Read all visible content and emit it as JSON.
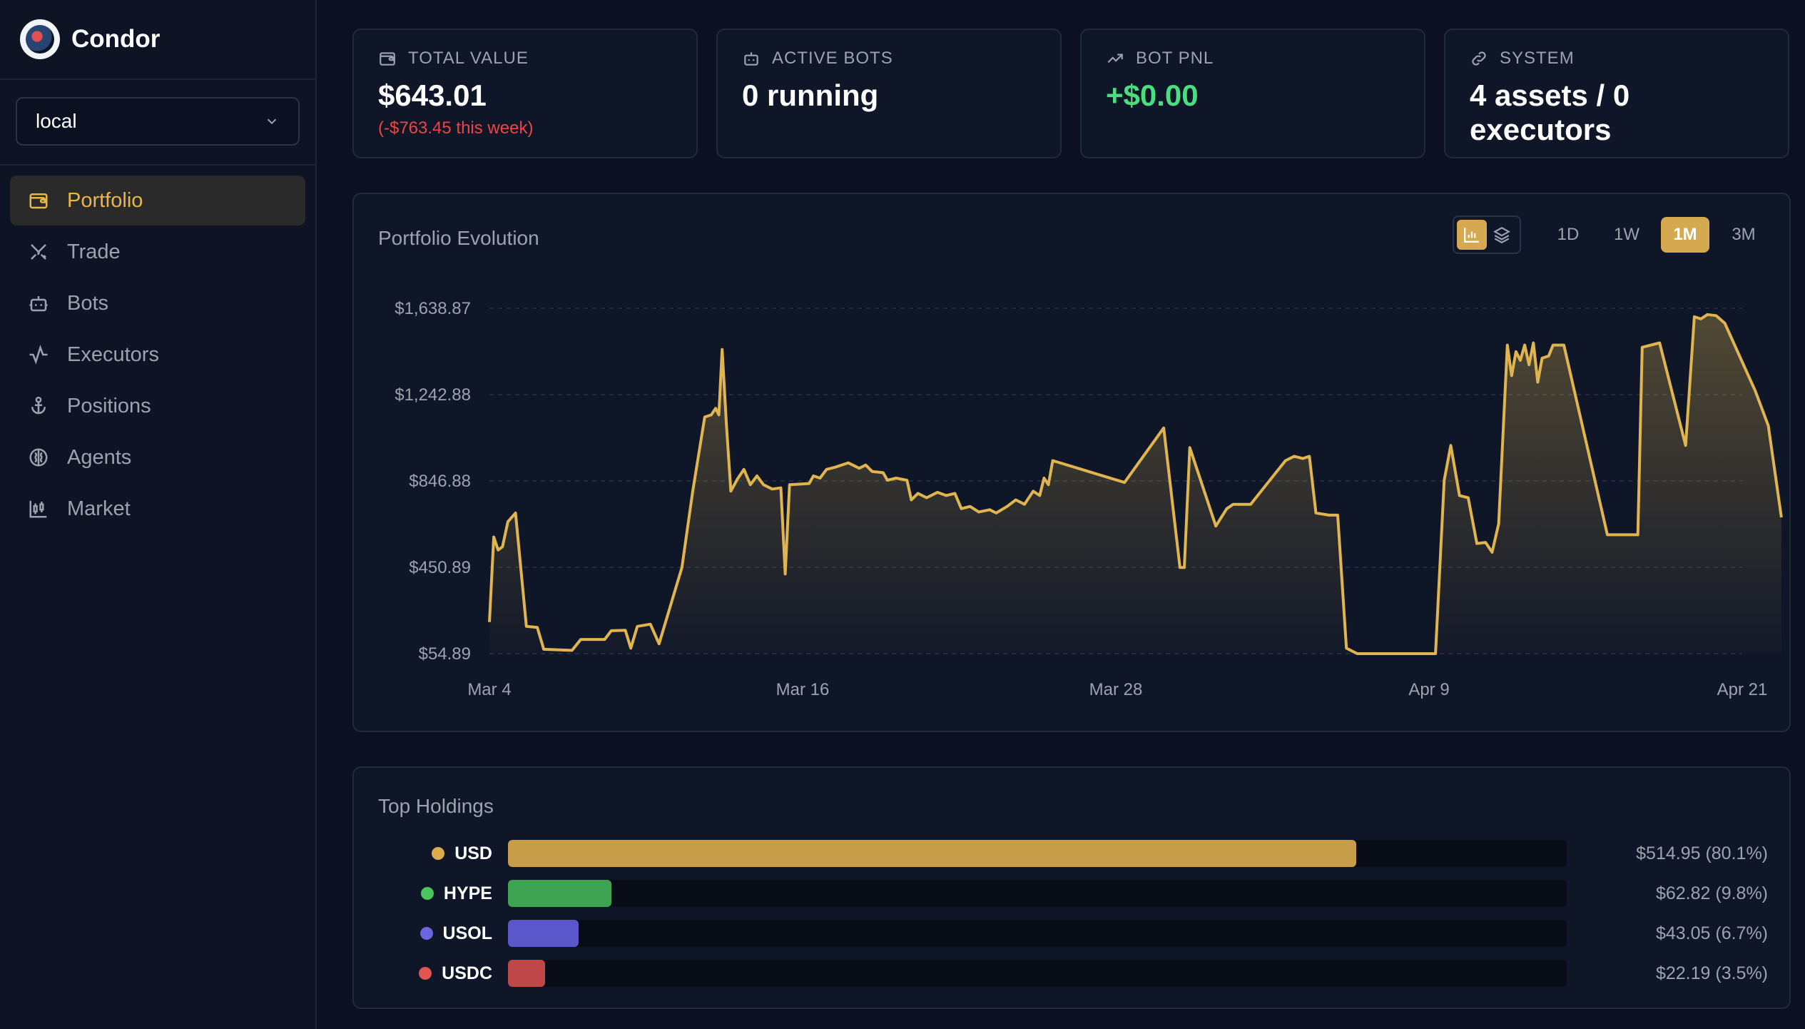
{
  "app": {
    "name": "Condor",
    "environment": "local"
  },
  "nav": [
    {
      "label": "Portfolio",
      "icon": "wallet-icon",
      "active": true
    },
    {
      "label": "Trade",
      "icon": "swords-icon",
      "active": false
    },
    {
      "label": "Bots",
      "icon": "bot-icon",
      "active": false
    },
    {
      "label": "Executors",
      "icon": "activity-icon",
      "active": false
    },
    {
      "label": "Positions",
      "icon": "anchor-icon",
      "active": false
    },
    {
      "label": "Agents",
      "icon": "brain-icon",
      "active": false
    },
    {
      "label": "Market",
      "icon": "candlestick-icon",
      "active": false
    }
  ],
  "cards": {
    "total_value": {
      "label": "TOTAL VALUE",
      "value": "$643.01",
      "sub": "(-$763.45 this week)"
    },
    "active_bots": {
      "label": "ACTIVE BOTS",
      "value": "0 running"
    },
    "bot_pnl": {
      "label": "BOT PNL",
      "value": "+$0.00"
    },
    "system": {
      "label": "SYSTEM",
      "value": "4 assets / 0 executors"
    }
  },
  "evolution": {
    "title": "Portfolio Evolution",
    "ranges": [
      "1D",
      "1W",
      "1M",
      "3M"
    ],
    "selected_range": "1M",
    "view_modes": [
      "bar-chart-icon",
      "layers-icon"
    ]
  },
  "chart_data": {
    "type": "area",
    "title": "",
    "xlabel": "",
    "ylabel": "",
    "ylim": [
      54.89,
      1638.87
    ],
    "y_ticks": [
      "$1,638.87",
      "$1,242.88",
      "$846.88",
      "$450.89",
      "$54.89"
    ],
    "y_tick_values": [
      1638.87,
      1242.88,
      846.88,
      450.89,
      54.89
    ],
    "x_ticks": [
      "Mar 4",
      "Mar 16",
      "Mar 28",
      "Apr 9",
      "Apr 21"
    ],
    "x_tick_values": [
      "2025-03-04",
      "2025-03-16",
      "2025-03-28",
      "2025-04-09",
      "2025-04-21"
    ],
    "grid": true,
    "line_color": "#e0b54f",
    "series": [
      {
        "values": [
          {
            "x": "2025-03-04T00:00",
            "y": 200
          },
          {
            "x": "2025-03-04T04:00",
            "y": 590
          },
          {
            "x": "2025-03-04T08:00",
            "y": 530
          },
          {
            "x": "2025-03-04T12:00",
            "y": 545
          },
          {
            "x": "2025-03-04T17:00",
            "y": 660
          },
          {
            "x": "2025-03-05T00:00",
            "y": 700
          },
          {
            "x": "2025-03-05T10:00",
            "y": 180
          },
          {
            "x": "2025-03-05T20:00",
            "y": 175
          },
          {
            "x": "2025-03-06T02:00",
            "y": 75
          },
          {
            "x": "2025-03-07T04:00",
            "y": 70
          },
          {
            "x": "2025-03-07T12:00",
            "y": 120
          },
          {
            "x": "2025-03-08T10:00",
            "y": 120
          },
          {
            "x": "2025-03-08T16:00",
            "y": 160
          },
          {
            "x": "2025-03-09T05:00",
            "y": 162
          },
          {
            "x": "2025-03-09T10:00",
            "y": 80
          },
          {
            "x": "2025-03-09T16:00",
            "y": 180
          },
          {
            "x": "2025-03-10T04:00",
            "y": 190
          },
          {
            "x": "2025-03-10T12:00",
            "y": 100
          },
          {
            "x": "2025-03-11T09:00",
            "y": 450
          },
          {
            "x": "2025-03-11T19:00",
            "y": 800
          },
          {
            "x": "2025-03-12T06:00",
            "y": 1140
          },
          {
            "x": "2025-03-12T12:00",
            "y": 1150
          },
          {
            "x": "2025-03-12T16:00",
            "y": 1180
          },
          {
            "x": "2025-03-12T19:00",
            "y": 1150
          },
          {
            "x": "2025-03-12T22:00",
            "y": 1450
          },
          {
            "x": "2025-03-13T02:00",
            "y": 1100
          },
          {
            "x": "2025-03-13T06:00",
            "y": 800
          },
          {
            "x": "2025-03-13T12:00",
            "y": 855
          },
          {
            "x": "2025-03-13T18:00",
            "y": 900
          },
          {
            "x": "2025-03-14T00:00",
            "y": 830
          },
          {
            "x": "2025-03-14T06:00",
            "y": 870
          },
          {
            "x": "2025-03-14T12:00",
            "y": 830
          },
          {
            "x": "2025-03-14T20:00",
            "y": 810
          },
          {
            "x": "2025-03-15T04:00",
            "y": 815
          },
          {
            "x": "2025-03-15T08:00",
            "y": 420
          },
          {
            "x": "2025-03-15T12:00",
            "y": 830
          },
          {
            "x": "2025-03-16T06:00",
            "y": 835
          },
          {
            "x": "2025-03-16T10:00",
            "y": 870
          },
          {
            "x": "2025-03-16T16:00",
            "y": 860
          },
          {
            "x": "2025-03-16T22:00",
            "y": 900
          },
          {
            "x": "2025-03-17T06:00",
            "y": 910
          },
          {
            "x": "2025-03-17T18:00",
            "y": 930
          },
          {
            "x": "2025-03-18T04:00",
            "y": 905
          },
          {
            "x": "2025-03-18T10:00",
            "y": 920
          },
          {
            "x": "2025-03-18T16:00",
            "y": 890
          },
          {
            "x": "2025-03-19T02:00",
            "y": 885
          },
          {
            "x": "2025-03-19T06:00",
            "y": 850
          },
          {
            "x": "2025-03-19T14:00",
            "y": 860
          },
          {
            "x": "2025-03-20T00:00",
            "y": 850
          },
          {
            "x": "2025-03-20T04:00",
            "y": 760
          },
          {
            "x": "2025-03-20T10:00",
            "y": 790
          },
          {
            "x": "2025-03-20T18:00",
            "y": 770
          },
          {
            "x": "2025-03-21T04:00",
            "y": 795
          },
          {
            "x": "2025-03-21T12:00",
            "y": 780
          },
          {
            "x": "2025-03-21T20:00",
            "y": 790
          },
          {
            "x": "2025-03-22T02:00",
            "y": 720
          },
          {
            "x": "2025-03-22T10:00",
            "y": 730
          },
          {
            "x": "2025-03-22T18:00",
            "y": 705
          },
          {
            "x": "2025-03-23T04:00",
            "y": 715
          },
          {
            "x": "2025-03-23T10:00",
            "y": 700
          },
          {
            "x": "2025-03-23T20:00",
            "y": 730
          },
          {
            "x": "2025-03-24T04:00",
            "y": 760
          },
          {
            "x": "2025-03-24T12:00",
            "y": 740
          },
          {
            "x": "2025-03-24T20:00",
            "y": 800
          },
          {
            "x": "2025-03-25T02:00",
            "y": 780
          },
          {
            "x": "2025-03-25T06:00",
            "y": 860
          },
          {
            "x": "2025-03-25T10:00",
            "y": 830
          },
          {
            "x": "2025-03-25T14:00",
            "y": 940
          },
          {
            "x": "2025-03-28T08:00",
            "y": 840
          },
          {
            "x": "2025-03-29T20:00",
            "y": 1090
          },
          {
            "x": "2025-03-30T11:00",
            "y": 450
          },
          {
            "x": "2025-03-30T15:00",
            "y": 450
          },
          {
            "x": "2025-03-30T20:00",
            "y": 1000
          },
          {
            "x": "2025-03-31T20:00",
            "y": 640
          },
          {
            "x": "2025-04-01T06:00",
            "y": 720
          },
          {
            "x": "2025-04-01T12:00",
            "y": 740
          },
          {
            "x": "2025-04-02T04:00",
            "y": 740
          },
          {
            "x": "2025-04-03T12:00",
            "y": 940
          },
          {
            "x": "2025-04-03T20:00",
            "y": 960
          },
          {
            "x": "2025-04-04T04:00",
            "y": 950
          },
          {
            "x": "2025-04-04T10:00",
            "y": 960
          },
          {
            "x": "2025-04-04T16:00",
            "y": 700
          },
          {
            "x": "2025-04-05T04:00",
            "y": 690
          },
          {
            "x": "2025-04-05T12:00",
            "y": 690
          },
          {
            "x": "2025-04-05T20:00",
            "y": 80
          },
          {
            "x": "2025-04-06T06:00",
            "y": 55
          },
          {
            "x": "2025-04-09T06:00",
            "y": 55
          },
          {
            "x": "2025-04-09T14:00",
            "y": 850
          },
          {
            "x": "2025-04-09T20:00",
            "y": 1010
          },
          {
            "x": "2025-04-10T04:00",
            "y": 780
          },
          {
            "x": "2025-04-10T12:00",
            "y": 770
          },
          {
            "x": "2025-04-10T20:00",
            "y": 560
          },
          {
            "x": "2025-04-11T04:00",
            "y": 565
          },
          {
            "x": "2025-04-11T10:00",
            "y": 520
          },
          {
            "x": "2025-04-11T16:00",
            "y": 650
          },
          {
            "x": "2025-04-12T00:00",
            "y": 1470
          },
          {
            "x": "2025-04-12T04:00",
            "y": 1330
          },
          {
            "x": "2025-04-12T08:00",
            "y": 1440
          },
          {
            "x": "2025-04-12T12:00",
            "y": 1400
          },
          {
            "x": "2025-04-12T16:00",
            "y": 1470
          },
          {
            "x": "2025-04-12T20:00",
            "y": 1380
          },
          {
            "x": "2025-04-13T00:00",
            "y": 1480
          },
          {
            "x": "2025-04-13T04:00",
            "y": 1300
          },
          {
            "x": "2025-04-13T08:00",
            "y": 1410
          },
          {
            "x": "2025-04-13T14:00",
            "y": 1420
          },
          {
            "x": "2025-04-13T18:00",
            "y": 1470
          },
          {
            "x": "2025-04-14T04:00",
            "y": 1470
          },
          {
            "x": "2025-04-15T20:00",
            "y": 600
          },
          {
            "x": "2025-04-17T00:00",
            "y": 600
          },
          {
            "x": "2025-04-17T04:00",
            "y": 1460
          },
          {
            "x": "2025-04-17T20:00",
            "y": 1480
          },
          {
            "x": "2025-04-18T20:00",
            "y": 1010
          },
          {
            "x": "2025-04-19T04:00",
            "y": 1600
          },
          {
            "x": "2025-04-19T10:00",
            "y": 1590
          },
          {
            "x": "2025-04-19T16:00",
            "y": 1610
          },
          {
            "x": "2025-04-20T00:00",
            "y": 1605
          },
          {
            "x": "2025-04-20T08:00",
            "y": 1570
          },
          {
            "x": "2025-04-21T12:00",
            "y": 1260
          },
          {
            "x": "2025-04-22T00:00",
            "y": 1100
          },
          {
            "x": "2025-04-22T12:00",
            "y": 680
          }
        ]
      }
    ]
  },
  "holdings": {
    "title": "Top Holdings",
    "items": [
      {
        "symbol": "USD",
        "value": "$514.95 (80.1%)",
        "pct": 80.1,
        "color": "#c89d49",
        "dot": "#dcac4c"
      },
      {
        "symbol": "HYPE",
        "value": "$62.82 (9.8%)",
        "pct": 9.8,
        "color": "#3fa354",
        "dot": "#4cc462"
      },
      {
        "symbol": "USOL",
        "value": "$43.05 (6.7%)",
        "pct": 6.7,
        "color": "#5b56c9",
        "dot": "#6a66e0"
      },
      {
        "symbol": "USDC",
        "value": "$22.19 (3.5%)",
        "pct": 3.5,
        "color": "#c04747",
        "dot": "#e35454"
      }
    ]
  }
}
